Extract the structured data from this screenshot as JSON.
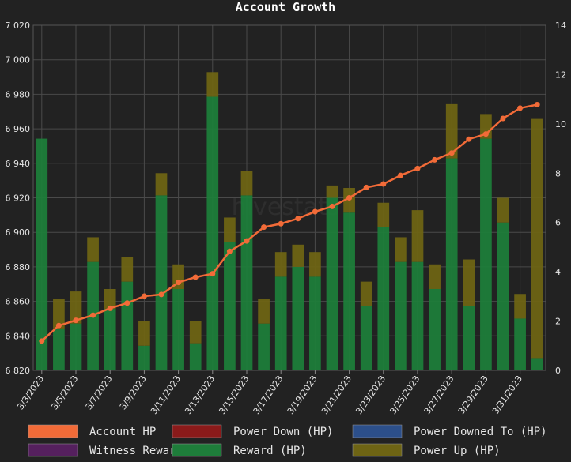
{
  "chart_data": {
    "type": "bar",
    "title": "Account Growth",
    "watermark": "hivestats",
    "left_axis": {
      "min": 6820,
      "max": 7020,
      "step": 20,
      "tick_labels": [
        "6 820",
        "6 840",
        "6 860",
        "6 880",
        "6 900",
        "6 920",
        "6 940",
        "6 960",
        "6 980",
        "7 000",
        "7 020"
      ]
    },
    "right_axis": {
      "min": 0,
      "max": 14,
      "step": 2,
      "tick_labels": [
        "0",
        "2",
        "4",
        "6",
        "8",
        "10",
        "12",
        "14"
      ]
    },
    "categories": [
      "3/3/2023",
      "3/4/2023",
      "3/5/2023",
      "3/6/2023",
      "3/7/2023",
      "3/8/2023",
      "3/9/2023",
      "3/10/2023",
      "3/11/2023",
      "3/12/2023",
      "3/13/2023",
      "3/14/2023",
      "3/15/2023",
      "3/16/2023",
      "3/17/2023",
      "3/18/2023",
      "3/19/2023",
      "3/20/2023",
      "3/21/2023",
      "3/22/2023",
      "3/23/2023",
      "3/24/2023",
      "3/25/2023",
      "3/26/2023",
      "3/27/2023",
      "3/28/2023",
      "3/29/2023",
      "3/30/2023",
      "3/31/2023",
      "4/1/2023"
    ],
    "x_tick_labels": [
      "3/3/2023",
      "3/5/2023",
      "3/7/2023",
      "3/9/2023",
      "3/11/2023",
      "3/13/2023",
      "3/15/2023",
      "3/17/2023",
      "3/19/2023",
      "3/21/2023",
      "3/23/2023",
      "3/25/2023",
      "3/27/2023",
      "3/29/2023",
      "3/31/2023"
    ],
    "grid": true,
    "legend_position": "bottom",
    "series": [
      {
        "name": "Account HP",
        "kind": "line",
        "axis": "left",
        "color": "#f26b38",
        "values": [
          6837,
          6846,
          6849,
          6852,
          6856,
          6859,
          6863,
          6864,
          6871,
          6874,
          6876,
          6889,
          6895,
          6903,
          6905,
          6908,
          6912,
          6915,
          6920,
          6926,
          6928,
          6933,
          6937,
          6942,
          6946,
          6954,
          6957,
          6966,
          6972,
          6974
        ]
      },
      {
        "name": "Power Down (HP)",
        "kind": "bar",
        "axis": "right",
        "color": "#8b1a1a",
        "values": [
          0,
          0,
          0,
          0,
          0,
          0,
          0,
          0,
          0,
          0,
          0,
          0,
          0,
          0,
          0,
          0,
          0,
          0,
          0,
          0,
          0,
          0,
          0,
          0,
          0,
          0,
          0,
          0,
          0,
          0
        ]
      },
      {
        "name": "Power Downed To (HP)",
        "kind": "bar",
        "axis": "right",
        "color": "#2c4f8a",
        "values": [
          0,
          0,
          0,
          0,
          0,
          0,
          0,
          0,
          0,
          0,
          0,
          0,
          0,
          0,
          0,
          0,
          0,
          0,
          0,
          0,
          0,
          0,
          0,
          0,
          0,
          0,
          0,
          0,
          0,
          0
        ]
      },
      {
        "name": "Witness Reward (HP)",
        "kind": "bar",
        "axis": "right",
        "color": "#55205e",
        "values": [
          0,
          0,
          0,
          0,
          0,
          0,
          0,
          0,
          0,
          0,
          0,
          0,
          0,
          0,
          0,
          0,
          0,
          0,
          0,
          0,
          0,
          0,
          0,
          0,
          0,
          0,
          0,
          0,
          0,
          0
        ]
      },
      {
        "name": "Reward (HP)",
        "kind": "bar",
        "axis": "right",
        "stack": "a",
        "color": "#1e7d3a",
        "values": [
          9.4,
          1.7,
          1.9,
          4.4,
          2.5,
          3.6,
          1.0,
          7.1,
          3.3,
          1.1,
          11.1,
          5.2,
          7.1,
          1.9,
          3.8,
          4.2,
          3.8,
          7.0,
          6.4,
          2.6,
          5.8,
          4.4,
          4.4,
          3.3,
          8.6,
          2.6,
          9.4,
          6.0,
          2.1,
          0.5
        ]
      },
      {
        "name": "Power Up (HP)",
        "kind": "bar",
        "axis": "right",
        "stack": "a",
        "color": "#6e6414",
        "values": [
          0.0,
          1.2,
          1.3,
          1.0,
          0.8,
          1.0,
          1.0,
          0.9,
          1.0,
          0.9,
          1.0,
          1.0,
          1.0,
          1.0,
          1.0,
          0.9,
          1.0,
          0.5,
          1.0,
          1.0,
          1.0,
          1.0,
          2.1,
          1.0,
          2.2,
          1.9,
          1.0,
          1.0,
          1.0,
          9.7
        ]
      }
    ]
  }
}
